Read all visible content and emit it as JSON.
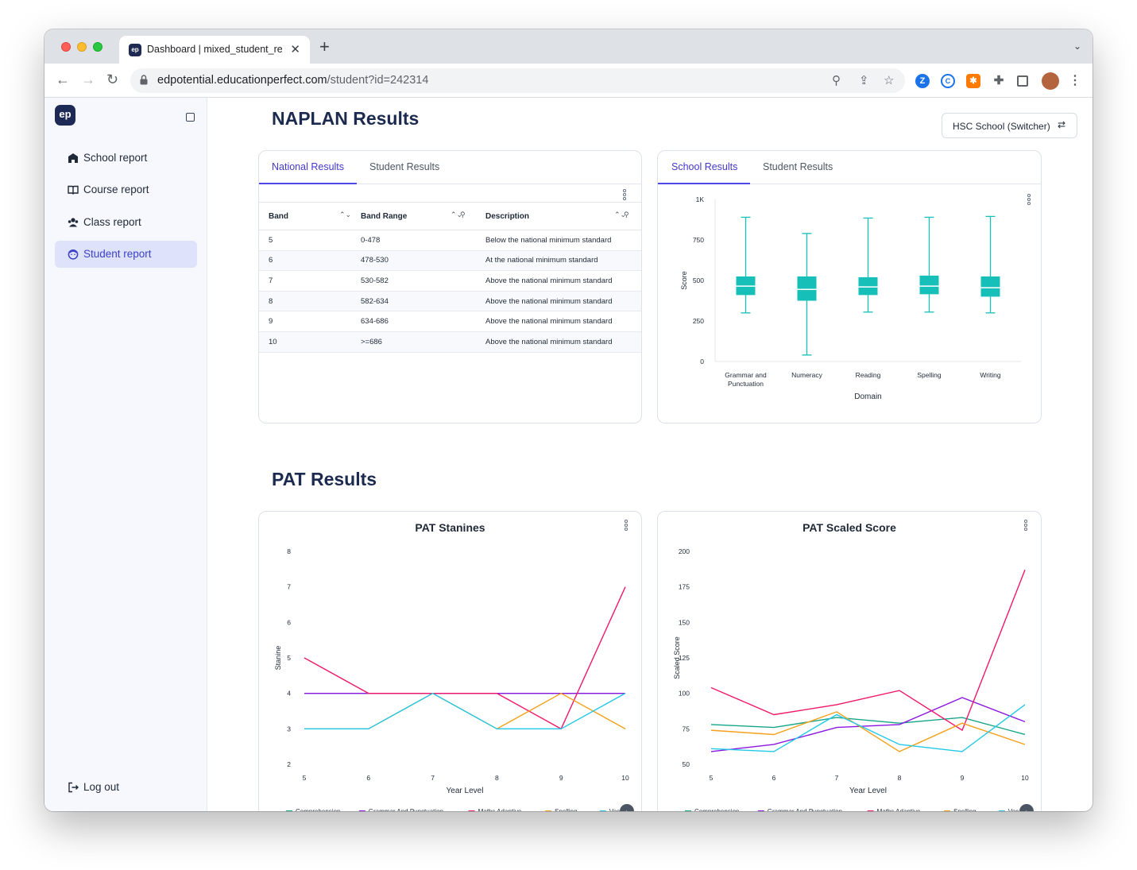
{
  "browser": {
    "tab_title": "Dashboard | mixed_student_re",
    "favicon_text": "ep",
    "url_domain": "edpotential.educationperfect.com",
    "url_path": "/student?id=242314"
  },
  "sidebar": {
    "logo": "ep",
    "items": [
      {
        "label": "School report",
        "icon": "school-icon",
        "active": false
      },
      {
        "label": "Course report",
        "icon": "book-icon",
        "active": false
      },
      {
        "label": "Class report",
        "icon": "users-icon",
        "active": false
      },
      {
        "label": "Student report",
        "icon": "student-face-icon",
        "active": true
      }
    ],
    "logout": "Log out"
  },
  "naplan": {
    "title": "NAPLAN Results",
    "switcher": "HSC School (Switcher)",
    "left_tabs": [
      "National Results",
      "Student Results"
    ],
    "right_tabs": [
      "School Results",
      "Student Results"
    ],
    "table": {
      "headers": [
        "Band",
        "Band Range",
        "Description"
      ],
      "rows": [
        [
          "5",
          "0-478",
          "Below the national minimum standard"
        ],
        [
          "6",
          "478-530",
          "At the national minimum standard"
        ],
        [
          "7",
          "530-582",
          "Above the national minimum standard"
        ],
        [
          "8",
          "582-634",
          "Above the national minimum standard"
        ],
        [
          "9",
          "634-686",
          "Above the national minimum standard"
        ],
        [
          "10",
          ">=686",
          "Above the national minimum standard"
        ]
      ]
    }
  },
  "pat": {
    "title": "PAT Results",
    "legend": [
      "Comprehension",
      "Grammar And Punctuation",
      "Maths Adaptive",
      "Spelling",
      "Voc"
    ]
  },
  "colors": {
    "accent": "#4338ca",
    "teal": "#16c0b8",
    "comprehension": "#17a589",
    "grammar": "#8b16e0",
    "maths": "#f0186b",
    "spelling": "#f5a11c",
    "vocab": "#22c8e8"
  },
  "chart_data": [
    {
      "type": "box",
      "title": "",
      "xlabel": "Domain",
      "ylabel": "Score",
      "ylim": [
        0,
        1000
      ],
      "yticks": [
        "0",
        "250",
        "500",
        "750",
        "1K"
      ],
      "categories": [
        "Grammar and Punctuation",
        "Numeracy",
        "Reading",
        "Spelling",
        "Writing"
      ],
      "boxes": [
        {
          "min": 300,
          "q1": 410,
          "median": 465,
          "q3": 525,
          "max": 890
        },
        {
          "min": 40,
          "q1": 375,
          "median": 445,
          "q3": 525,
          "max": 790
        },
        {
          "min": 305,
          "q1": 410,
          "median": 460,
          "q3": 520,
          "max": 885
        },
        {
          "min": 305,
          "q1": 415,
          "median": 465,
          "q3": 530,
          "max": 890
        },
        {
          "min": 300,
          "q1": 400,
          "median": 455,
          "q3": 525,
          "max": 895
        }
      ]
    },
    {
      "type": "line",
      "title": "PAT Stanines",
      "xlabel": "Year Level",
      "ylabel": "Stanine",
      "ylim": [
        2,
        8
      ],
      "x": [
        5,
        6,
        7,
        8,
        9,
        10
      ],
      "series": [
        {
          "name": "Comprehension",
          "values": [
            4,
            4,
            4,
            4,
            4,
            4
          ]
        },
        {
          "name": "Grammar And Punctuation",
          "values": [
            4,
            4,
            4,
            4,
            4,
            4
          ]
        },
        {
          "name": "Maths Adaptive",
          "values": [
            5,
            4,
            4,
            4,
            3,
            7
          ]
        },
        {
          "name": "Spelling",
          "values": [
            3,
            3,
            4,
            3,
            4,
            3
          ]
        },
        {
          "name": "Voc",
          "values": [
            3,
            3,
            4,
            3,
            3,
            4
          ]
        }
      ]
    },
    {
      "type": "line",
      "title": "PAT Scaled Score",
      "xlabel": "Year Level",
      "ylabel": "Scaled Score",
      "ylim": [
        50,
        200
      ],
      "x": [
        5,
        6,
        7,
        8,
        9,
        10
      ],
      "series": [
        {
          "name": "Comprehension",
          "values": [
            78,
            76,
            83,
            79,
            83,
            71
          ]
        },
        {
          "name": "Grammar And Punctuation",
          "values": [
            59,
            64,
            76,
            78,
            97,
            80
          ]
        },
        {
          "name": "Maths Adaptive",
          "values": [
            104,
            85,
            92,
            102,
            74,
            187
          ]
        },
        {
          "name": "Spelling",
          "values": [
            74,
            71,
            87,
            59,
            79,
            64
          ]
        },
        {
          "name": "Voc",
          "values": [
            61,
            59,
            85,
            64,
            59,
            92
          ]
        }
      ]
    }
  ]
}
